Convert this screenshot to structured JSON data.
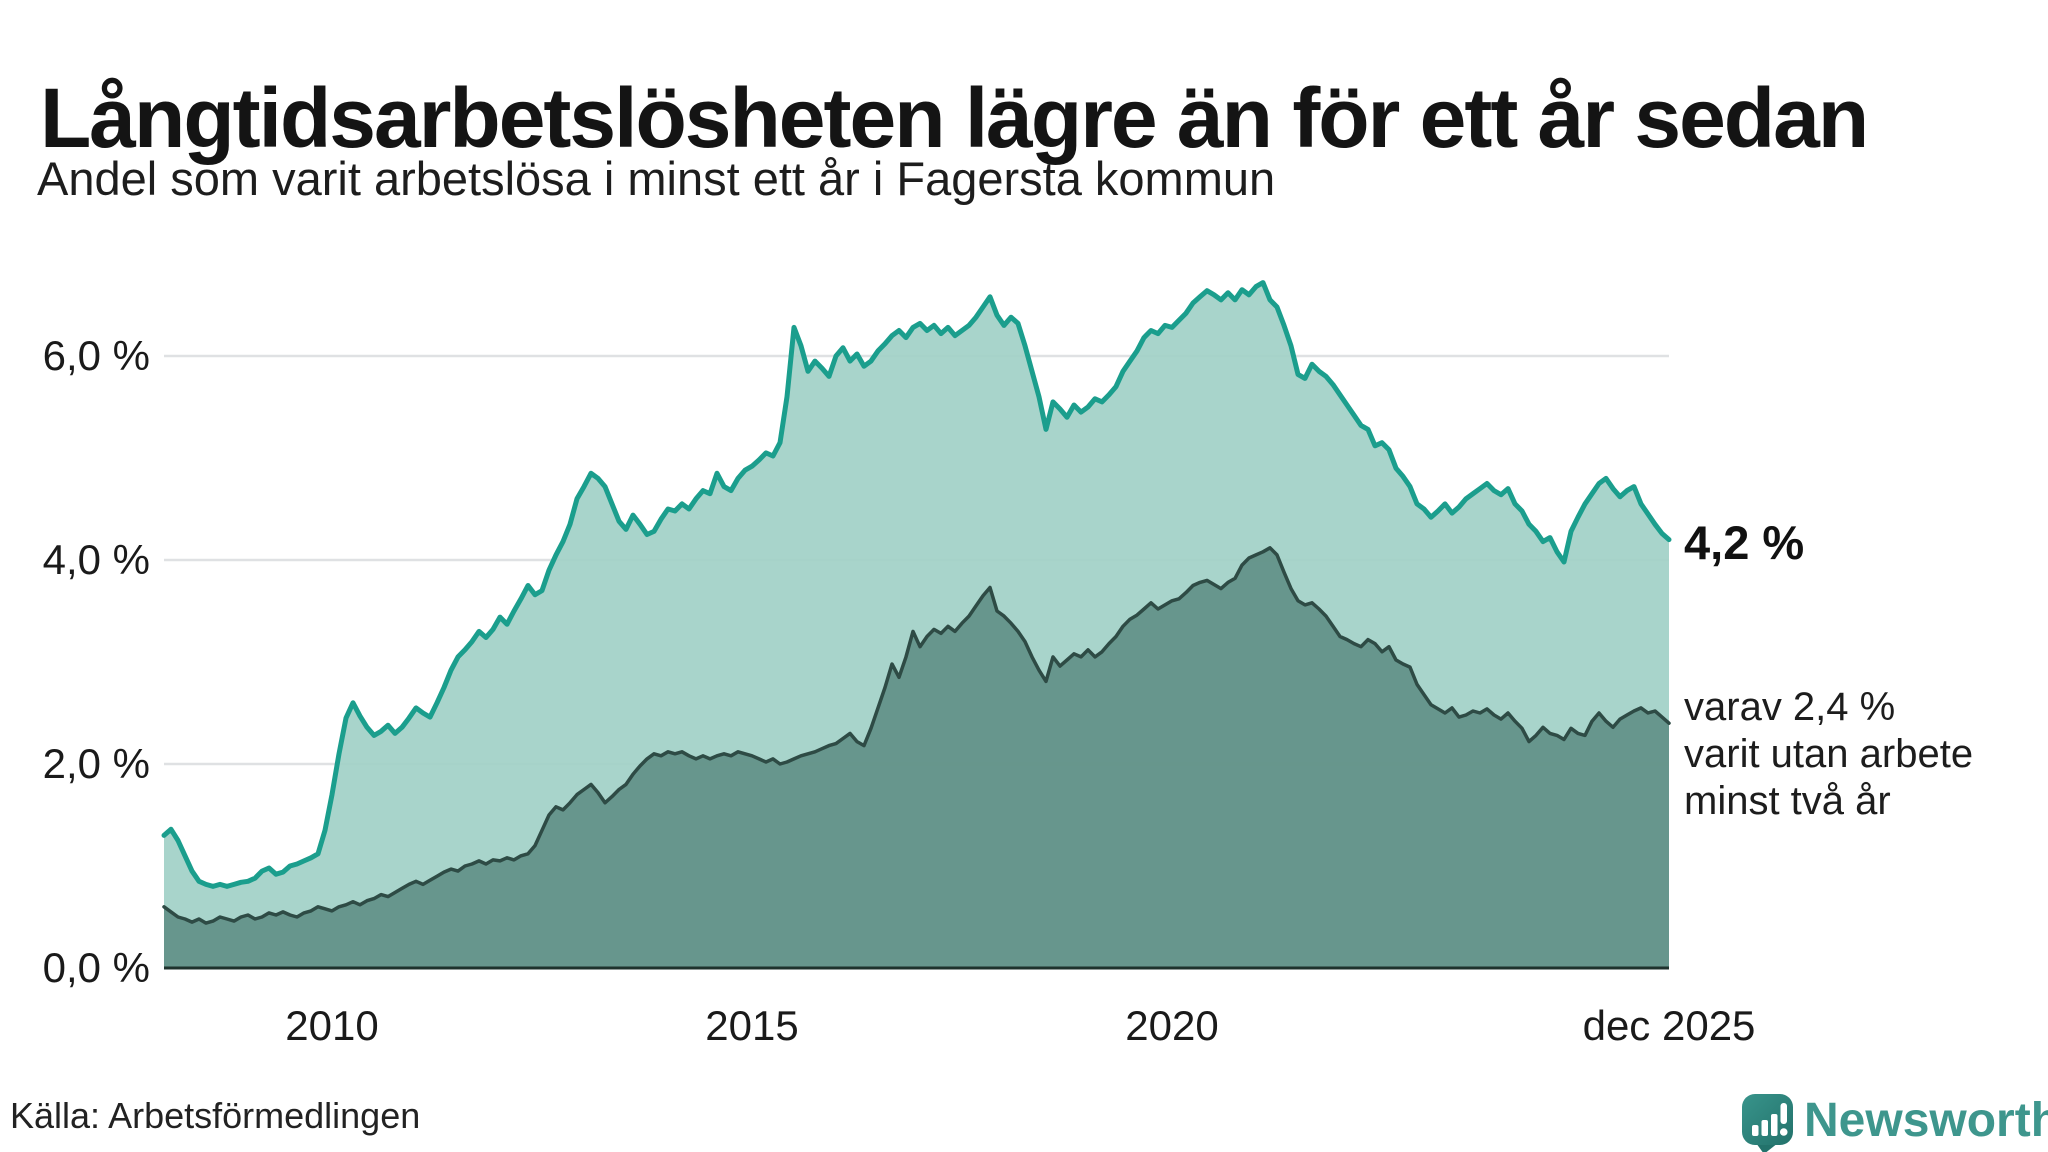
{
  "header": {
    "title": "Långtidsarbetslösheten lägre än för ett år sedan",
    "subtitle": "Andel som varit arbetslösa i minst ett år i Fagersta kommun"
  },
  "annotations": {
    "total_end_label": "4,2 %",
    "secondary": "varav 2,4 %\nvarit utan arbete\nminst två år"
  },
  "footer": {
    "source": "Källa: Arbetsförmedlingen",
    "brand": "Newsworthy"
  },
  "colors": {
    "background": "#ffffff",
    "gridline": "#dfe1e3",
    "baseline": "#1e322d",
    "text": "#1a1a1a",
    "brand_teal": "#3e968d",
    "brand_icon_dark": "#23726b",
    "brand_icon_light": "#38948b"
  },
  "chart_data": {
    "type": "area",
    "title": "Långtidsarbetslösheten lägre än för ett år sedan",
    "subtitle": "Andel som varit arbetslösa i minst ett år i Fagersta kommun",
    "unit": "%",
    "frequency": "monthly",
    "x_start": 2008.0,
    "x_end": 2025.9167,
    "ylim": [
      0,
      7
    ],
    "grid": true,
    "y_ticks": [
      {
        "v": 6,
        "label": "6,0 %"
      },
      {
        "v": 4,
        "label": "4,0 %"
      },
      {
        "v": 2,
        "label": "2,0 %"
      },
      {
        "v": 0,
        "label": "0,0 %"
      }
    ],
    "x_ticks": [
      {
        "t": 2010,
        "label": "2010"
      },
      {
        "t": 2015,
        "label": "2015"
      },
      {
        "t": 2020,
        "label": "2020"
      },
      {
        "t": 2025.9167,
        "label": "dec 2025"
      }
    ],
    "series": [
      {
        "name": "Arbetslösa minst ett år",
        "end_value": 4.2,
        "end_label": "4,2 %",
        "line_color": "#1b9e8d",
        "fill_color": "#a1d1c7",
        "line_width": 5,
        "values": [
          1.3,
          1.36,
          1.25,
          1.1,
          0.95,
          0.85,
          0.82,
          0.8,
          0.82,
          0.8,
          0.82,
          0.84,
          0.85,
          0.88,
          0.95,
          0.98,
          0.92,
          0.94,
          1.0,
          1.02,
          1.05,
          1.08,
          1.12,
          1.35,
          1.7,
          2.1,
          2.45,
          2.6,
          2.47,
          2.36,
          2.28,
          2.32,
          2.38,
          2.3,
          2.36,
          2.45,
          2.55,
          2.5,
          2.46,
          2.6,
          2.75,
          2.92,
          3.05,
          3.12,
          3.2,
          3.3,
          3.24,
          3.32,
          3.44,
          3.37,
          3.5,
          3.62,
          3.75,
          3.66,
          3.7,
          3.9,
          4.05,
          4.18,
          4.35,
          4.6,
          4.72,
          4.85,
          4.8,
          4.72,
          4.55,
          4.38,
          4.3,
          4.44,
          4.35,
          4.25,
          4.28,
          4.4,
          4.5,
          4.48,
          4.55,
          4.5,
          4.6,
          4.68,
          4.65,
          4.85,
          4.72,
          4.68,
          4.8,
          4.88,
          4.92,
          4.98,
          5.05,
          5.02,
          5.15,
          5.6,
          6.28,
          6.1,
          5.85,
          5.95,
          5.88,
          5.8,
          6.0,
          6.08,
          5.95,
          6.02,
          5.9,
          5.95,
          6.05,
          6.12,
          6.2,
          6.25,
          6.18,
          6.28,
          6.32,
          6.25,
          6.3,
          6.22,
          6.28,
          6.2,
          6.25,
          6.3,
          6.38,
          6.48,
          6.58,
          6.4,
          6.3,
          6.38,
          6.32,
          6.1,
          5.85,
          5.6,
          5.28,
          5.55,
          5.48,
          5.4,
          5.52,
          5.45,
          5.5,
          5.58,
          5.55,
          5.62,
          5.7,
          5.85,
          5.95,
          6.05,
          6.18,
          6.25,
          6.22,
          6.3,
          6.28,
          6.35,
          6.42,
          6.52,
          6.58,
          6.64,
          6.6,
          6.55,
          6.62,
          6.55,
          6.65,
          6.6,
          6.68,
          6.72,
          6.55,
          6.48,
          6.3,
          6.1,
          5.82,
          5.78,
          5.92,
          5.85,
          5.8,
          5.72,
          5.62,
          5.52,
          5.42,
          5.32,
          5.28,
          5.12,
          5.15,
          5.08,
          4.9,
          4.82,
          4.72,
          4.55,
          4.5,
          4.42,
          4.48,
          4.55,
          4.46,
          4.52,
          4.6,
          4.65,
          4.7,
          4.75,
          4.68,
          4.64,
          4.7,
          4.55,
          4.48,
          4.35,
          4.28,
          4.18,
          4.22,
          4.08,
          3.98,
          4.28,
          4.42,
          4.55,
          4.65,
          4.75,
          4.8,
          4.7,
          4.62,
          4.68,
          4.72,
          4.55,
          4.45,
          4.35,
          4.26,
          4.2
        ]
      },
      {
        "name": "Arbetslösa minst två år",
        "end_value": 2.4,
        "end_label": "varav 2,4 % varit utan arbete minst två år",
        "line_color": "#2e4b45",
        "fill_color": "#629188",
        "line_width": 3.5,
        "values": [
          0.6,
          0.55,
          0.5,
          0.48,
          0.45,
          0.48,
          0.44,
          0.46,
          0.5,
          0.48,
          0.46,
          0.5,
          0.52,
          0.48,
          0.5,
          0.54,
          0.52,
          0.55,
          0.52,
          0.5,
          0.54,
          0.56,
          0.6,
          0.58,
          0.56,
          0.6,
          0.62,
          0.65,
          0.62,
          0.66,
          0.68,
          0.72,
          0.7,
          0.74,
          0.78,
          0.82,
          0.85,
          0.82,
          0.86,
          0.9,
          0.94,
          0.97,
          0.95,
          1.0,
          1.02,
          1.05,
          1.02,
          1.06,
          1.05,
          1.08,
          1.06,
          1.1,
          1.12,
          1.2,
          1.35,
          1.5,
          1.58,
          1.55,
          1.62,
          1.7,
          1.75,
          1.8,
          1.72,
          1.62,
          1.68,
          1.75,
          1.8,
          1.9,
          1.98,
          2.05,
          2.1,
          2.08,
          2.12,
          2.1,
          2.12,
          2.08,
          2.05,
          2.08,
          2.05,
          2.08,
          2.1,
          2.08,
          2.12,
          2.1,
          2.08,
          2.05,
          2.02,
          2.05,
          2.0,
          2.02,
          2.05,
          2.08,
          2.1,
          2.12,
          2.15,
          2.18,
          2.2,
          2.25,
          2.3,
          2.22,
          2.18,
          2.35,
          2.55,
          2.75,
          2.98,
          2.85,
          3.05,
          3.3,
          3.15,
          3.25,
          3.32,
          3.28,
          3.35,
          3.3,
          3.38,
          3.45,
          3.55,
          3.65,
          3.73,
          3.5,
          3.45,
          3.38,
          3.3,
          3.2,
          3.05,
          2.92,
          2.81,
          3.05,
          2.96,
          3.02,
          3.08,
          3.05,
          3.12,
          3.05,
          3.1,
          3.18,
          3.25,
          3.35,
          3.42,
          3.46,
          3.52,
          3.58,
          3.52,
          3.56,
          3.6,
          3.62,
          3.68,
          3.75,
          3.78,
          3.8,
          3.76,
          3.72,
          3.78,
          3.82,
          3.95,
          4.02,
          4.05,
          4.08,
          4.12,
          4.05,
          3.88,
          3.72,
          3.6,
          3.56,
          3.58,
          3.52,
          3.45,
          3.35,
          3.25,
          3.22,
          3.18,
          3.15,
          3.22,
          3.18,
          3.1,
          3.15,
          3.02,
          2.98,
          2.95,
          2.78,
          2.68,
          2.58,
          2.54,
          2.5,
          2.55,
          2.46,
          2.48,
          2.52,
          2.5,
          2.54,
          2.48,
          2.44,
          2.5,
          2.42,
          2.35,
          2.22,
          2.28,
          2.36,
          2.3,
          2.28,
          2.24,
          2.35,
          2.3,
          2.28,
          2.42,
          2.5,
          2.42,
          2.36,
          2.44,
          2.48,
          2.52,
          2.55,
          2.5,
          2.52,
          2.46,
          2.4
        ]
      }
    ]
  }
}
